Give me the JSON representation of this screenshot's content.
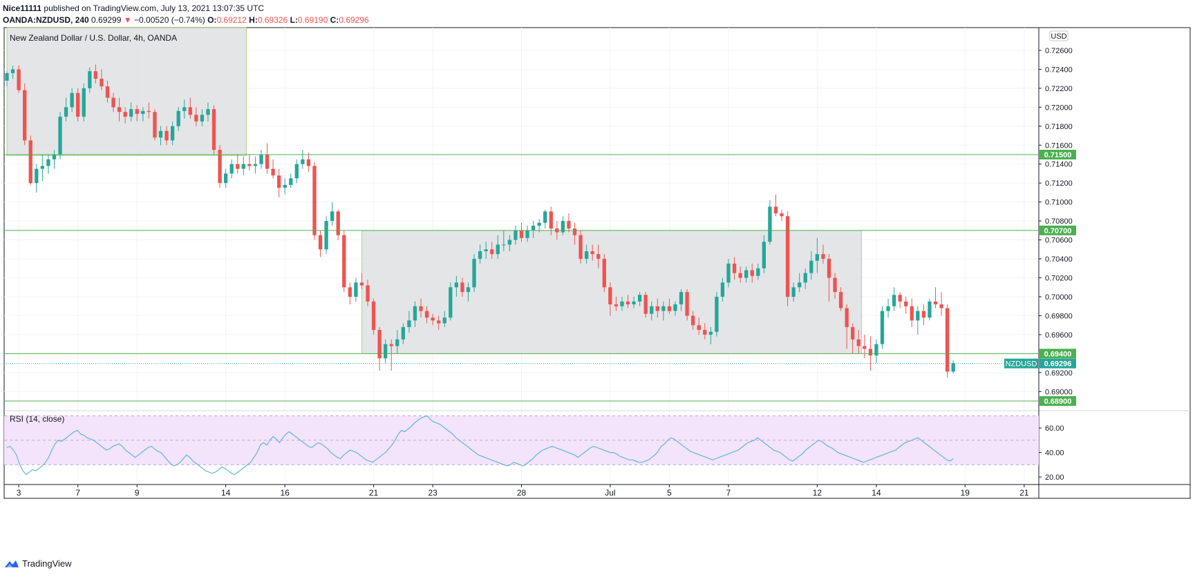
{
  "header": {
    "publisher": "Nice11111",
    "published_text": "published on TradingView.com, July 13, 2021 13:07:35 UTC",
    "symbol": "OANDA:NZDUSD, 240",
    "last": "0.69299",
    "arrow": "▼",
    "change": "−0.00520 (−0.74%)",
    "o_label": "O:",
    "o_value": "0.69212",
    "h_label": "H:",
    "h_value": "0.69326",
    "l_label": "L:",
    "l_value": "0.69190",
    "c_label": "C:",
    "c_value": "0.69296"
  },
  "footer": {
    "brand": "TradingView"
  },
  "colors": {
    "up": "#26a69a",
    "down": "#ef5350",
    "level_line": "#4caf50",
    "zone_fill": "#dfe1e3",
    "rsi_line": "#5bb8d8",
    "rsi_band": "#f3e3fb",
    "badge_bg": "#4caf50",
    "current_badge": "#26a69a"
  },
  "chart_data": {
    "type": "candlestick",
    "title": "New Zealand Dollar / U.S. Dollar, 4h, OANDA",
    "currency": "USD",
    "price_axis": {
      "range": [
        0.6882,
        0.7284
      ],
      "ticks": [
        "0.72600",
        "0.72400",
        "0.72200",
        "0.72000",
        "0.71800",
        "0.71600",
        "0.71400",
        "0.71200",
        "0.71000",
        "0.70800",
        "0.70600",
        "0.70400",
        "0.70200",
        "0.70000",
        "0.69800",
        "0.69600",
        "0.69200",
        "0.69000"
      ]
    },
    "x_axis": {
      "bar_range": [
        0,
        174
      ],
      "labels": [
        {
          "bar": 2,
          "text": "3"
        },
        {
          "bar": 12,
          "text": "7"
        },
        {
          "bar": 22,
          "text": "9"
        },
        {
          "bar": 37,
          "text": "14"
        },
        {
          "bar": 47,
          "text": "16"
        },
        {
          "bar": 62,
          "text": "21"
        },
        {
          "bar": 72,
          "text": "23"
        },
        {
          "bar": 87,
          "text": "28"
        },
        {
          "bar": 102,
          "text": "Jul"
        },
        {
          "bar": 112,
          "text": "5"
        },
        {
          "bar": 122,
          "text": "7"
        },
        {
          "bar": 137,
          "text": "12"
        },
        {
          "bar": 147,
          "text": "14"
        },
        {
          "bar": 162,
          "text": "19"
        },
        {
          "bar": 172,
          "text": "21"
        }
      ]
    },
    "levels": [
      {
        "price": 0.715,
        "label": "0.71500"
      },
      {
        "price": 0.707,
        "label": "0.70700"
      },
      {
        "price": 0.694,
        "label": "0.69400"
      },
      {
        "price": 0.689,
        "label": "0.68900"
      }
    ],
    "current": {
      "price": 0.69296,
      "symbol": "NZDUSD",
      "label": "0.69296"
    },
    "zones": [
      {
        "bar_from": 0,
        "bar_to": 40.5,
        "price_from": 0.7149,
        "price_to": 0.7284
      },
      {
        "bar_from": 60,
        "bar_to": 144.5,
        "price_from": 0.694,
        "price_to": 0.707
      }
    ],
    "candles": [
      [
        0.7228,
        0.7238,
        0.7222,
        0.7236
      ],
      [
        0.7236,
        0.7244,
        0.723,
        0.724
      ],
      [
        0.724,
        0.7244,
        0.7215,
        0.7218
      ],
      [
        0.7218,
        0.7225,
        0.716,
        0.7165
      ],
      [
        0.7165,
        0.717,
        0.7118,
        0.712
      ],
      [
        0.712,
        0.714,
        0.711,
        0.7135
      ],
      [
        0.7135,
        0.715,
        0.7122,
        0.7138
      ],
      [
        0.7138,
        0.715,
        0.713,
        0.7145
      ],
      [
        0.7145,
        0.7155,
        0.7135,
        0.715
      ],
      [
        0.715,
        0.7195,
        0.7145,
        0.719
      ],
      [
        0.719,
        0.721,
        0.7185,
        0.72
      ],
      [
        0.72,
        0.722,
        0.7195,
        0.7215
      ],
      [
        0.7215,
        0.722,
        0.7185,
        0.719
      ],
      [
        0.719,
        0.7225,
        0.7185,
        0.722
      ],
      [
        0.722,
        0.7242,
        0.7215,
        0.7238
      ],
      [
        0.7238,
        0.7245,
        0.7225,
        0.723
      ],
      [
        0.723,
        0.724,
        0.7218,
        0.7222
      ],
      [
        0.7222,
        0.7228,
        0.7205,
        0.721
      ],
      [
        0.721,
        0.7215,
        0.7195,
        0.72
      ],
      [
        0.72,
        0.721,
        0.7185,
        0.7195
      ],
      [
        0.7195,
        0.72,
        0.7183,
        0.719
      ],
      [
        0.719,
        0.7205,
        0.7185,
        0.7198
      ],
      [
        0.7198,
        0.7202,
        0.7185,
        0.7193
      ],
      [
        0.7193,
        0.72,
        0.7185,
        0.7196
      ],
      [
        0.7196,
        0.7205,
        0.7188,
        0.7195
      ],
      [
        0.7195,
        0.7198,
        0.7165,
        0.7168
      ],
      [
        0.7168,
        0.718,
        0.716,
        0.7175
      ],
      [
        0.7175,
        0.718,
        0.716,
        0.7165
      ],
      [
        0.7165,
        0.7185,
        0.716,
        0.718
      ],
      [
        0.718,
        0.72,
        0.7175,
        0.7196
      ],
      [
        0.7196,
        0.7208,
        0.7188,
        0.72
      ],
      [
        0.72,
        0.721,
        0.7188,
        0.7192
      ],
      [
        0.7192,
        0.72,
        0.718,
        0.7185
      ],
      [
        0.7185,
        0.7198,
        0.718,
        0.7192
      ],
      [
        0.7192,
        0.7205,
        0.7185,
        0.7198
      ],
      [
        0.7198,
        0.7202,
        0.715,
        0.7155
      ],
      [
        0.7155,
        0.716,
        0.7115,
        0.712
      ],
      [
        0.712,
        0.7135,
        0.7115,
        0.713
      ],
      [
        0.713,
        0.7145,
        0.7125,
        0.714
      ],
      [
        0.714,
        0.715,
        0.713,
        0.7135
      ],
      [
        0.7135,
        0.7148,
        0.7128,
        0.714
      ],
      [
        0.714,
        0.715,
        0.7133,
        0.7138
      ],
      [
        0.7138,
        0.7148,
        0.713,
        0.714
      ],
      [
        0.714,
        0.7155,
        0.7135,
        0.715
      ],
      [
        0.715,
        0.7162,
        0.713,
        0.7135
      ],
      [
        0.7135,
        0.7145,
        0.7125,
        0.7128
      ],
      [
        0.7128,
        0.7135,
        0.7105,
        0.7115
      ],
      [
        0.7115,
        0.7125,
        0.7108,
        0.7118
      ],
      [
        0.7118,
        0.713,
        0.7115,
        0.7125
      ],
      [
        0.7125,
        0.7145,
        0.712,
        0.714
      ],
      [
        0.714,
        0.7155,
        0.7135,
        0.7145
      ],
      [
        0.7145,
        0.7152,
        0.7132,
        0.7138
      ],
      [
        0.7138,
        0.7142,
        0.706,
        0.7065
      ],
      [
        0.7065,
        0.707,
        0.7042,
        0.705
      ],
      [
        0.705,
        0.7085,
        0.7045,
        0.708
      ],
      [
        0.708,
        0.71,
        0.7075,
        0.709
      ],
      [
        0.709,
        0.7092,
        0.706,
        0.7065
      ],
      [
        0.7065,
        0.707,
        0.7005,
        0.701
      ],
      [
        0.701,
        0.7015,
        0.6992,
        0.7
      ],
      [
        0.7,
        0.702,
        0.6995,
        0.7015
      ],
      [
        0.7015,
        0.7025,
        0.7008,
        0.7012
      ],
      [
        0.7012,
        0.7018,
        0.699,
        0.6995
      ],
      [
        0.6995,
        0.6998,
        0.696,
        0.6965
      ]
    ],
    "candles_2": [
      [
        0.6965,
        0.6968,
        0.6922,
        0.6935
      ],
      [
        0.6935,
        0.6955,
        0.693,
        0.695
      ],
      [
        0.695,
        0.6955,
        0.6922,
        0.6948
      ],
      [
        0.6948,
        0.6965,
        0.694,
        0.6955
      ],
      [
        0.6955,
        0.6972,
        0.695,
        0.6968
      ],
      [
        0.6968,
        0.6985,
        0.6962,
        0.6975
      ],
      [
        0.6975,
        0.6995,
        0.6968,
        0.699
      ],
      [
        0.699,
        0.6998,
        0.6978,
        0.6985
      ],
      [
        0.6985,
        0.699,
        0.6972,
        0.6978
      ],
      [
        0.6978,
        0.6982,
        0.697,
        0.6975
      ],
      [
        0.6975,
        0.698,
        0.6965,
        0.6972
      ],
      [
        0.6972,
        0.6985,
        0.6968,
        0.6978
      ],
      [
        0.6978,
        0.7015,
        0.6975,
        0.701
      ],
      [
        0.701,
        0.7022,
        0.7,
        0.7015
      ],
      [
        0.7015,
        0.702,
        0.7,
        0.7005
      ],
      [
        0.7005,
        0.7015,
        0.6995,
        0.701
      ],
      [
        0.701,
        0.7045,
        0.7005,
        0.704
      ],
      [
        0.704,
        0.7055,
        0.7035,
        0.7048
      ],
      [
        0.7048,
        0.7058,
        0.704,
        0.705
      ],
      [
        0.705,
        0.7058,
        0.704,
        0.7045
      ],
      [
        0.7045,
        0.7065,
        0.704,
        0.7055
      ],
      [
        0.7055,
        0.707,
        0.7048,
        0.7055
      ],
      [
        0.7055,
        0.7065,
        0.7048,
        0.706
      ],
      [
        0.706,
        0.7075,
        0.7055,
        0.707
      ],
      [
        0.707,
        0.7078,
        0.7058,
        0.7062
      ],
      [
        0.7062,
        0.7075,
        0.7058,
        0.707
      ],
      [
        0.707,
        0.708,
        0.7062,
        0.7075
      ],
      [
        0.7075,
        0.7082,
        0.7068,
        0.7078
      ],
      [
        0.7078,
        0.7092,
        0.7072,
        0.709
      ],
      [
        0.709,
        0.7095,
        0.7065,
        0.7072
      ],
      [
        0.7072,
        0.708,
        0.706,
        0.7068
      ],
      [
        0.7068,
        0.7085,
        0.7065,
        0.708
      ],
      [
        0.708,
        0.7088,
        0.7068,
        0.7072
      ],
      [
        0.7072,
        0.7078,
        0.7055,
        0.7065
      ],
      [
        0.7065,
        0.707,
        0.7035,
        0.704
      ],
      [
        0.704,
        0.7055,
        0.7035,
        0.7048
      ],
      [
        0.7048,
        0.7055,
        0.7038,
        0.7045
      ],
      [
        0.7045,
        0.7055,
        0.703,
        0.704
      ],
      [
        0.704,
        0.7045,
        0.7005,
        0.701
      ],
      [
        0.701,
        0.7015,
        0.698,
        0.6992
      ],
      [
        0.6992,
        0.7,
        0.6985,
        0.699
      ],
      [
        0.699,
        0.7,
        0.6985,
        0.6995
      ],
      [
        0.6995,
        0.7002,
        0.6988,
        0.6992
      ],
      [
        0.6992,
        0.7,
        0.6988,
        0.6995
      ],
      [
        0.6995,
        0.7005,
        0.699,
        0.7002
      ]
    ],
    "candles_3": [
      [
        0.7002,
        0.7005,
        0.6978,
        0.6982
      ],
      [
        0.6982,
        0.6995,
        0.6975,
        0.699
      ],
      [
        0.699,
        0.6998,
        0.6978,
        0.6985
      ],
      [
        0.6985,
        0.6995,
        0.6975,
        0.699
      ],
      [
        0.699,
        0.6998,
        0.6982,
        0.6985
      ],
      [
        0.6985,
        0.6995,
        0.698,
        0.6992
      ],
      [
        0.6992,
        0.7008,
        0.6985,
        0.7005
      ],
      [
        0.7005,
        0.7008,
        0.6975,
        0.698
      ],
      [
        0.698,
        0.6985,
        0.6965,
        0.697
      ],
      [
        0.697,
        0.6978,
        0.696,
        0.6965
      ],
      [
        0.6965,
        0.6972,
        0.6955,
        0.696
      ],
      [
        0.696,
        0.6968,
        0.695,
        0.6963
      ],
      [
        0.6963,
        0.7005,
        0.6958,
        0.7
      ],
      [
        0.7,
        0.702,
        0.6995,
        0.7015
      ],
      [
        0.7015,
        0.704,
        0.701,
        0.7035
      ],
      [
        0.7035,
        0.7042,
        0.7018,
        0.7025
      ],
      [
        0.7025,
        0.7032,
        0.7015,
        0.702
      ],
      [
        0.702,
        0.7032,
        0.7015,
        0.7028
      ],
      [
        0.7028,
        0.7035,
        0.7015,
        0.7022
      ],
      [
        0.7022,
        0.7035,
        0.7018,
        0.703
      ],
      [
        0.703,
        0.7065,
        0.7025,
        0.7058
      ],
      [
        0.7058,
        0.7102,
        0.7055,
        0.7095
      ],
      [
        0.7095,
        0.7108,
        0.7085,
        0.7088
      ],
      [
        0.7088,
        0.7092,
        0.708,
        0.7085
      ],
      [
        0.7085,
        0.709,
        0.699,
        0.7
      ],
      [
        0.7,
        0.7015,
        0.6995,
        0.701
      ],
      [
        0.701,
        0.7025,
        0.7005,
        0.7015
      ]
    ],
    "candles_4": [
      [
        0.7015,
        0.703,
        0.7008,
        0.7025
      ],
      [
        0.7025,
        0.7048,
        0.7018,
        0.7038
      ],
      [
        0.7038,
        0.7062,
        0.7025,
        0.7045
      ],
      [
        0.7045,
        0.7055,
        0.7035,
        0.704
      ],
      [
        0.704,
        0.7045,
        0.6995,
        0.702
      ],
      [
        0.702,
        0.7025,
        0.6998,
        0.7005
      ],
      [
        0.7005,
        0.701,
        0.6985,
        0.6988
      ],
      [
        0.6988,
        0.6992,
        0.6945,
        0.6968
      ],
      [
        0.6968,
        0.6972,
        0.694,
        0.6955
      ],
      [
        0.6955,
        0.6965,
        0.694,
        0.6948
      ],
      [
        0.6948,
        0.696,
        0.6935,
        0.6945
      ],
      [
        0.6945,
        0.6958,
        0.6922,
        0.6938
      ],
      [
        0.6938,
        0.6955,
        0.693,
        0.695
      ],
      [
        0.695,
        0.699,
        0.6945,
        0.6985
      ],
      [
        0.6985,
        0.6998,
        0.6978,
        0.699
      ],
      [
        0.699,
        0.701,
        0.6985,
        0.7002
      ],
      [
        0.7002,
        0.7005,
        0.6988,
        0.6995
      ],
      [
        0.6995,
        0.7,
        0.6982,
        0.699
      ],
      [
        0.699,
        0.6998,
        0.6968,
        0.6975
      ],
      [
        0.6975,
        0.699,
        0.696,
        0.6985
      ],
      [
        0.6985,
        0.6992,
        0.697,
        0.6978
      ],
      [
        0.6978,
        0.6998,
        0.6975,
        0.6995
      ],
      [
        0.6995,
        0.701,
        0.6988,
        0.6992
      ],
      [
        0.6992,
        0.7005,
        0.698,
        0.6988
      ],
      [
        0.6988,
        0.6992,
        0.6915,
        0.6921
      ],
      [
        0.6921,
        0.6933,
        0.6919,
        0.693
      ]
    ],
    "rsi": {
      "label": "RSI (14, close)",
      "range": [
        15,
        73
      ],
      "ticks": [
        "60.00",
        "40.00",
        "20.00"
      ],
      "upper": 70,
      "middle": 50,
      "lower": 30,
      "values": [
        44,
        45,
        42,
        38,
        30,
        25,
        22,
        24,
        26,
        25,
        27,
        29,
        32,
        36,
        42,
        47,
        50,
        49,
        51,
        53,
        55,
        57,
        58,
        55,
        54,
        52,
        51,
        50,
        48,
        46,
        44,
        42,
        43,
        45,
        46,
        47,
        45,
        42,
        40,
        38,
        36,
        38,
        40,
        42,
        44,
        45,
        43,
        41,
        40,
        37,
        34,
        31,
        29,
        30,
        32,
        35,
        38,
        36,
        33,
        31,
        29,
        27,
        25,
        24,
        23,
        24,
        26,
        28,
        27,
        25,
        23,
        22,
        24,
        26,
        28,
        30,
        32,
        36,
        40,
        46,
        48,
        46,
        50,
        53,
        51,
        48,
        52,
        55,
        57,
        55,
        53,
        51,
        49,
        47,
        45,
        44,
        46,
        48,
        47,
        45,
        43,
        40,
        38,
        36,
        35,
        38,
        40,
        42,
        41,
        40,
        38,
        36,
        34,
        33,
        32,
        34,
        36,
        38,
        40,
        43,
        46,
        50,
        55,
        58,
        57,
        59,
        61,
        64,
        66,
        68,
        69,
        70,
        67,
        65,
        64,
        63,
        61,
        59,
        57,
        55,
        52,
        50,
        48,
        46,
        44,
        42,
        40,
        38,
        37,
        36,
        35,
        34,
        33,
        32,
        31,
        30,
        29,
        30,
        32,
        31,
        30,
        29,
        31,
        33,
        35,
        38,
        40,
        42,
        43,
        44,
        45,
        44,
        43,
        42,
        41,
        40,
        39,
        38,
        36,
        38,
        40,
        42,
        44,
        45,
        44,
        43,
        42,
        41,
        40,
        40,
        39,
        37,
        36,
        35,
        34,
        34,
        33,
        32,
        32,
        33,
        34,
        36,
        38,
        41,
        45,
        47,
        50,
        52,
        51,
        49,
        47,
        45,
        43,
        41,
        40,
        39,
        38,
        37,
        36,
        35,
        34,
        35,
        36,
        37,
        38,
        39,
        40,
        41,
        42,
        44,
        46,
        48,
        49,
        50,
        52,
        50,
        48,
        46,
        44,
        42,
        41,
        40,
        38,
        36,
        34,
        33,
        35,
        37,
        39,
        42,
        44,
        46,
        48,
        50,
        49,
        47,
        45,
        44,
        42,
        40,
        39,
        38,
        37,
        36,
        35,
        34,
        33,
        32,
        33,
        34,
        35,
        36,
        37,
        38,
        39,
        40,
        41,
        42,
        44,
        46,
        48,
        49,
        50,
        51,
        52,
        50,
        48,
        46,
        44,
        42,
        40,
        38,
        36,
        34,
        33,
        35
      ]
    }
  }
}
